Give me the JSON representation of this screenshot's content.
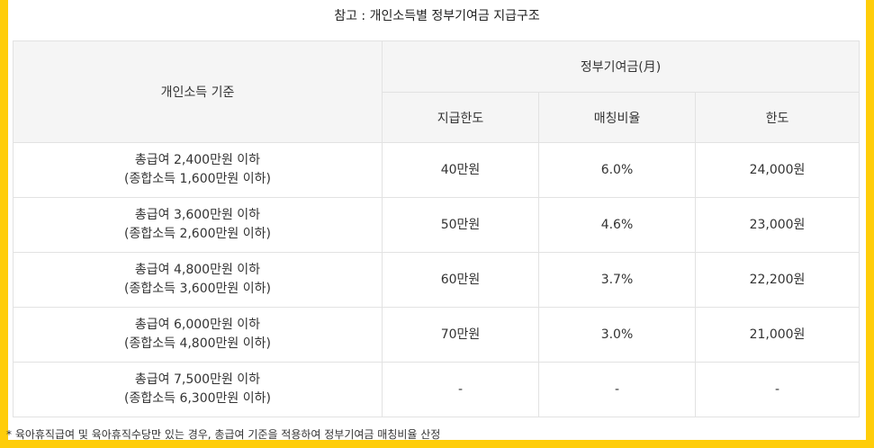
{
  "title": "참고 : 개인소득별 정부기여금 지급구조",
  "header": {
    "income_col": "개인소득 기준",
    "group": "정부기여금(月)",
    "sub": [
      "지급한도",
      "매칭비율",
      "한도"
    ]
  },
  "rows": [
    {
      "line1": "총급여 2,400만원 이하",
      "line2": "(종합소득 1,600만원 이하)",
      "limit": "40만원",
      "ratio": "6.0%",
      "cap": "24,000원"
    },
    {
      "line1": "총급여 3,600만원 이하",
      "line2": "(종합소득 2,600만원 이하)",
      "limit": "50만원",
      "ratio": "4.6%",
      "cap": "23,000원"
    },
    {
      "line1": "총급여 4,800만원 이하",
      "line2": "(종합소득 3,600만원 이하)",
      "limit": "60만원",
      "ratio": "3.7%",
      "cap": "22,200원"
    },
    {
      "line1": "총급여 6,000만원 이하",
      "line2": "(종합소득 4,800만원 이하)",
      "limit": "70만원",
      "ratio": "3.0%",
      "cap": "21,000원"
    },
    {
      "line1": "총급여 7,500만원 이하",
      "line2": "(종합소득 6,300만원 이하)",
      "limit": "-",
      "ratio": "-",
      "cap": "-"
    }
  ],
  "footnote": "* 육아휴직급여 및 육아휴직수당만 있는 경우, 총급여 기준을 적용하여 정부기여금 매칭비율 산정",
  "colors": {
    "frame": "#ffcd0a",
    "header_bg": "#f5f5f5",
    "border": "#e2e2e2"
  }
}
